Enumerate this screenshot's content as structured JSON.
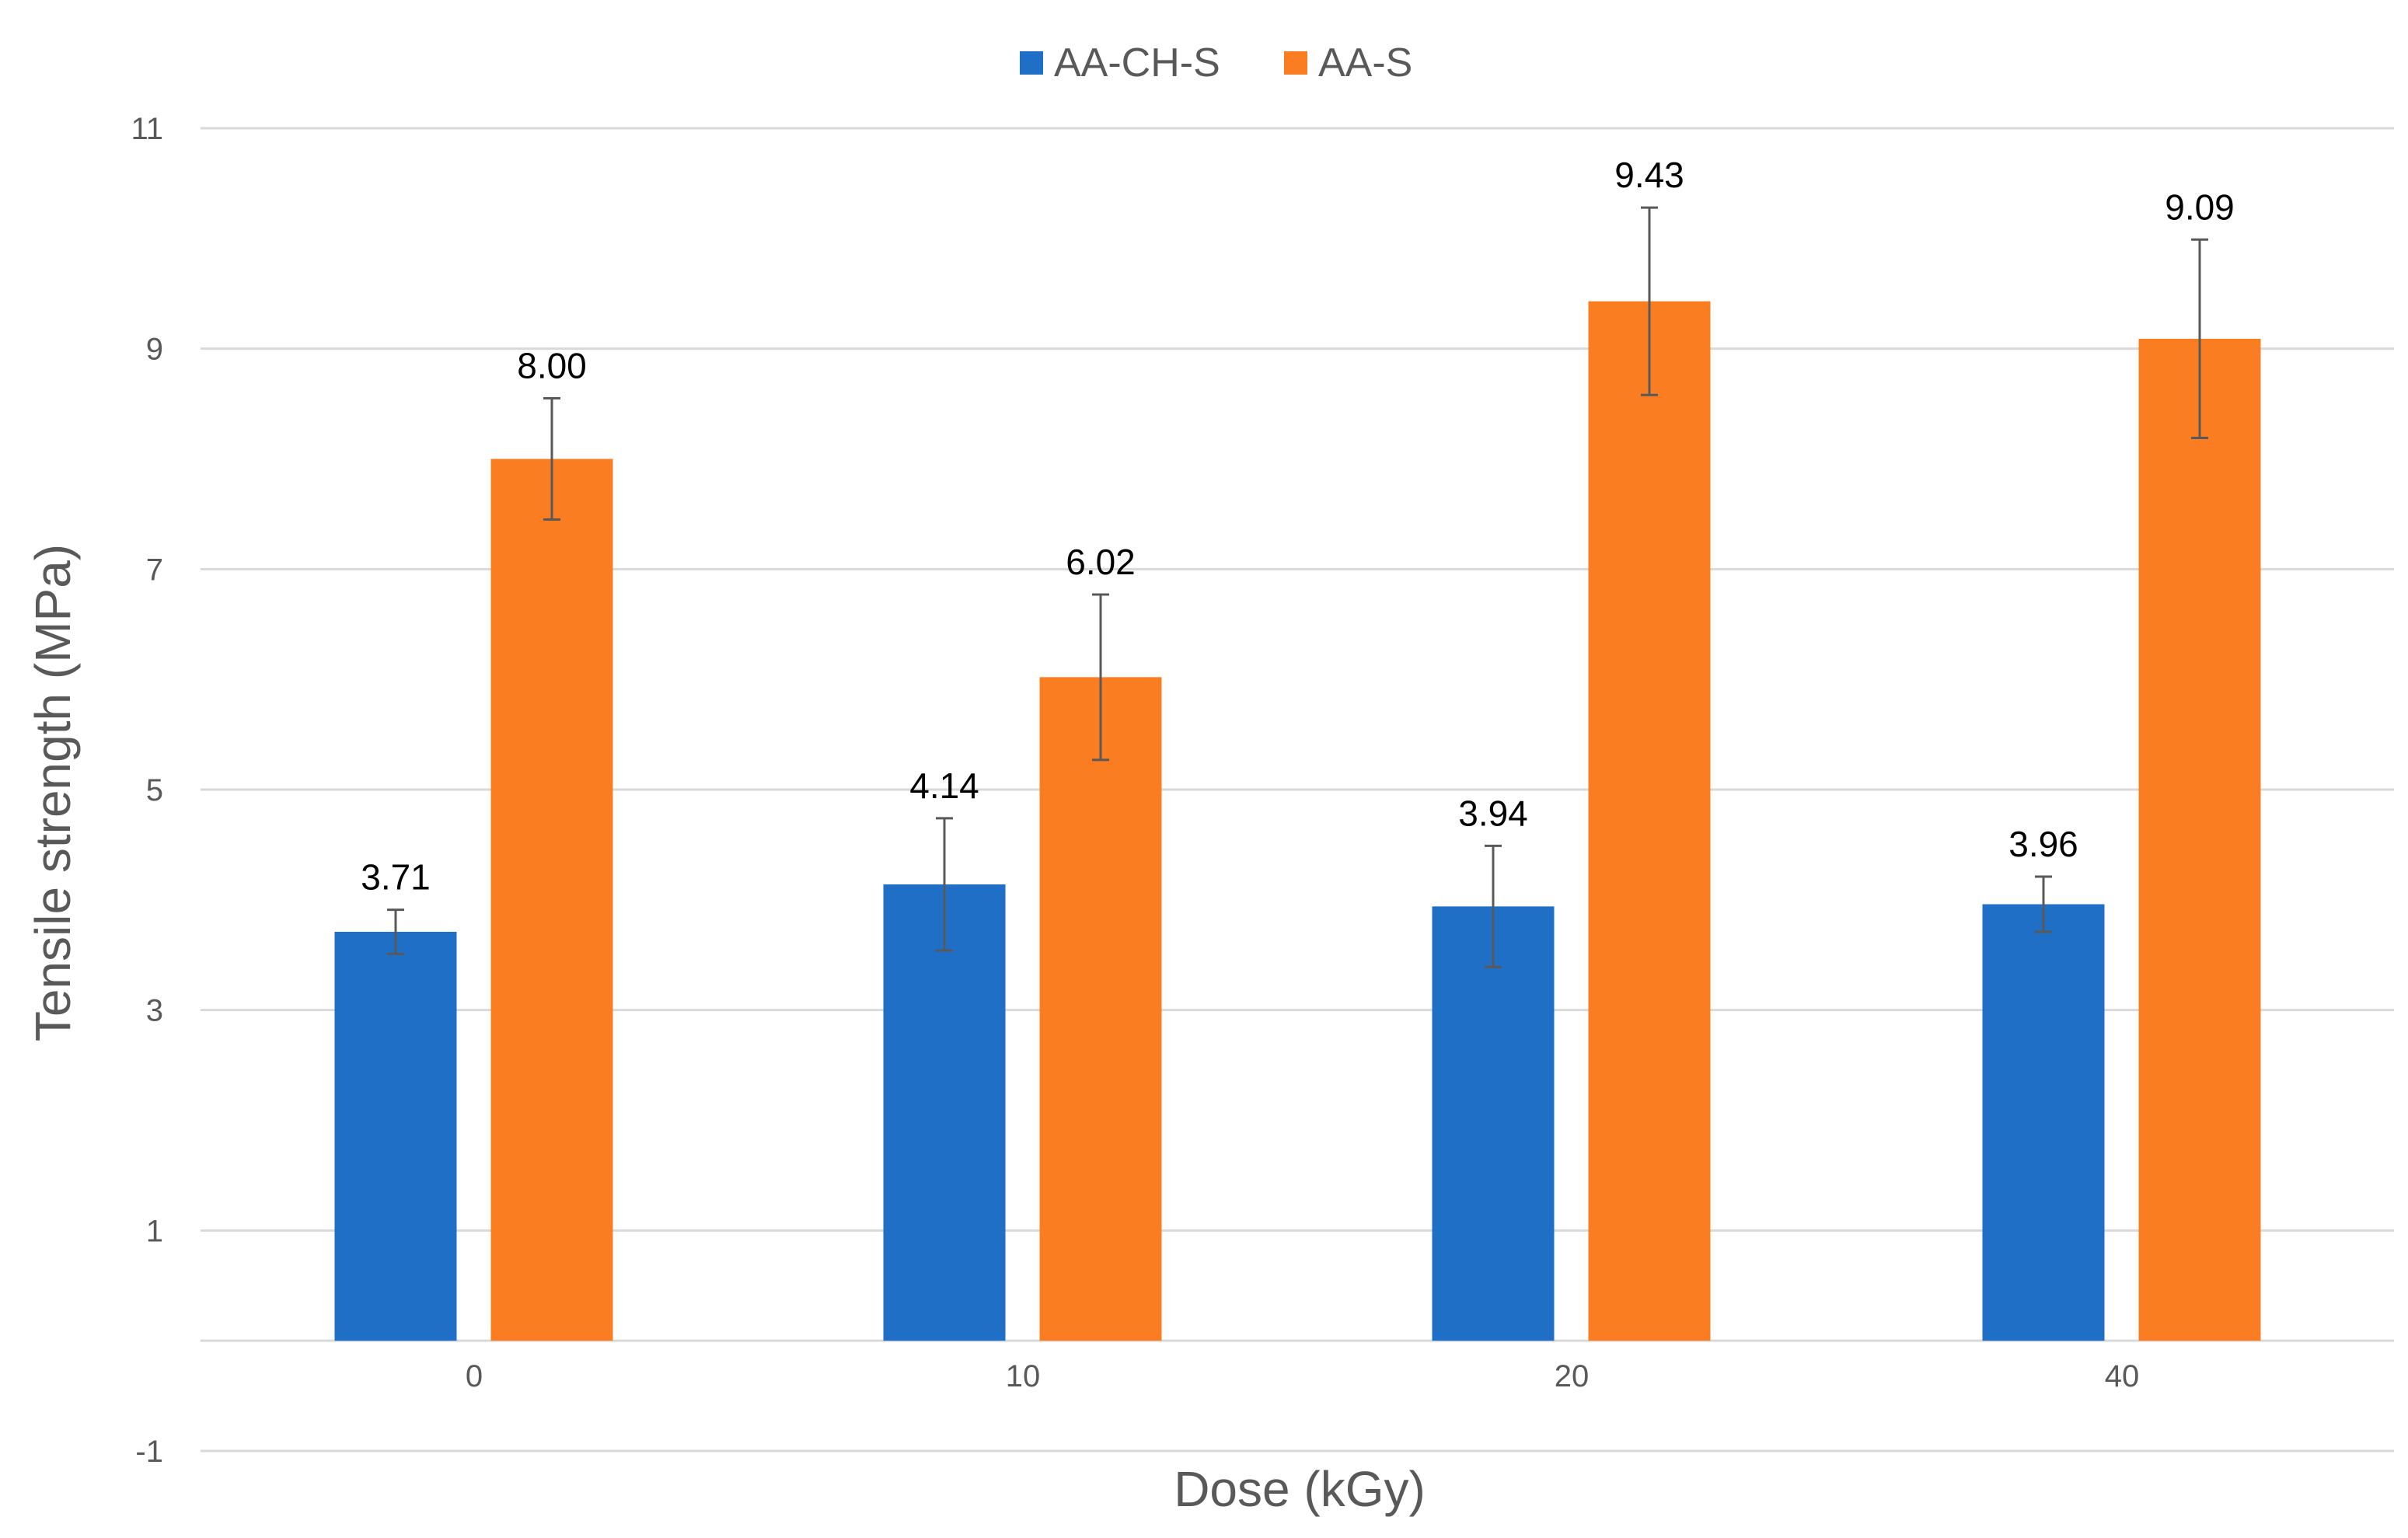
{
  "chart_data": {
    "type": "bar",
    "title": "",
    "xlabel": "Dose (kGy)",
    "ylabel": "Tensile strength (MPa)",
    "categories": [
      "0",
      "10",
      "20",
      "40"
    ],
    "ylim": [
      -1,
      11
    ],
    "yticks": [
      -1,
      1,
      3,
      5,
      7,
      9,
      11
    ],
    "grid": true,
    "legend_position": "top-center",
    "series": [
      {
        "name": "AA-CH-S",
        "color": "#1f6fc6",
        "values": [
          3.71,
          4.14,
          3.94,
          3.96
        ],
        "labels": [
          "3.71",
          "4.14",
          "3.94",
          "3.96"
        ],
        "errors": [
          0.2,
          0.6,
          0.55,
          0.25
        ]
      },
      {
        "name": "AA-S",
        "color": "#fb7d22",
        "values": [
          8.0,
          6.02,
          9.43,
          9.09
        ],
        "labels": [
          "8.00",
          "6.02",
          "9.43",
          "9.09"
        ],
        "errors": [
          0.55,
          0.75,
          0.85,
          0.9
        ]
      }
    ]
  }
}
